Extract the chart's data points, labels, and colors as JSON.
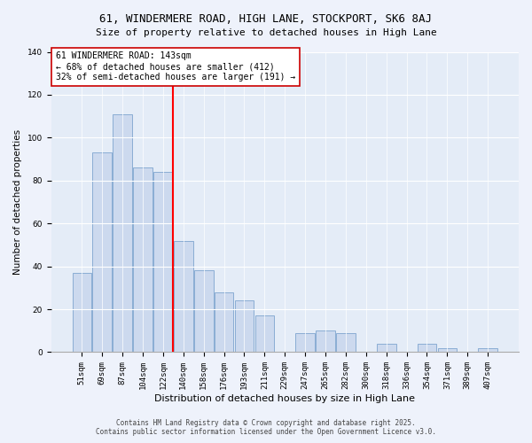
{
  "title": "61, WINDERMERE ROAD, HIGH LANE, STOCKPORT, SK6 8AJ",
  "subtitle": "Size of property relative to detached houses in High Lane",
  "xlabel": "Distribution of detached houses by size in High Lane",
  "ylabel": "Number of detached properties",
  "bar_labels": [
    "51sqm",
    "69sqm",
    "87sqm",
    "104sqm",
    "122sqm",
    "140sqm",
    "158sqm",
    "176sqm",
    "193sqm",
    "211sqm",
    "229sqm",
    "247sqm",
    "265sqm",
    "282sqm",
    "300sqm",
    "318sqm",
    "336sqm",
    "354sqm",
    "371sqm",
    "389sqm",
    "407sqm"
  ],
  "bar_values": [
    37,
    93,
    111,
    86,
    84,
    52,
    38,
    28,
    24,
    17,
    0,
    9,
    10,
    9,
    0,
    4,
    0,
    4,
    2,
    0,
    2
  ],
  "bar_color": "#ccd9ee",
  "bar_edge_color": "#8aadd4",
  "vline_color": "red",
  "annotation_line1": "61 WINDERMERE ROAD: 143sqm",
  "annotation_line2": "← 68% of detached houses are smaller (412)",
  "annotation_line3": "32% of semi-detached houses are larger (191) →",
  "ylim": [
    0,
    140
  ],
  "yticks": [
    0,
    20,
    40,
    60,
    80,
    100,
    120,
    140
  ],
  "background_color": "#eef2fb",
  "plot_background": "#e4ecf7",
  "footer_line1": "Contains HM Land Registry data © Crown copyright and database right 2025.",
  "footer_line2": "Contains public sector information licensed under the Open Government Licence v3.0.",
  "title_fontsize": 9,
  "subtitle_fontsize": 8,
  "xlabel_fontsize": 8,
  "ylabel_fontsize": 7.5,
  "tick_fontsize": 6.5,
  "annot_fontsize": 7,
  "footer_fontsize": 5.5
}
